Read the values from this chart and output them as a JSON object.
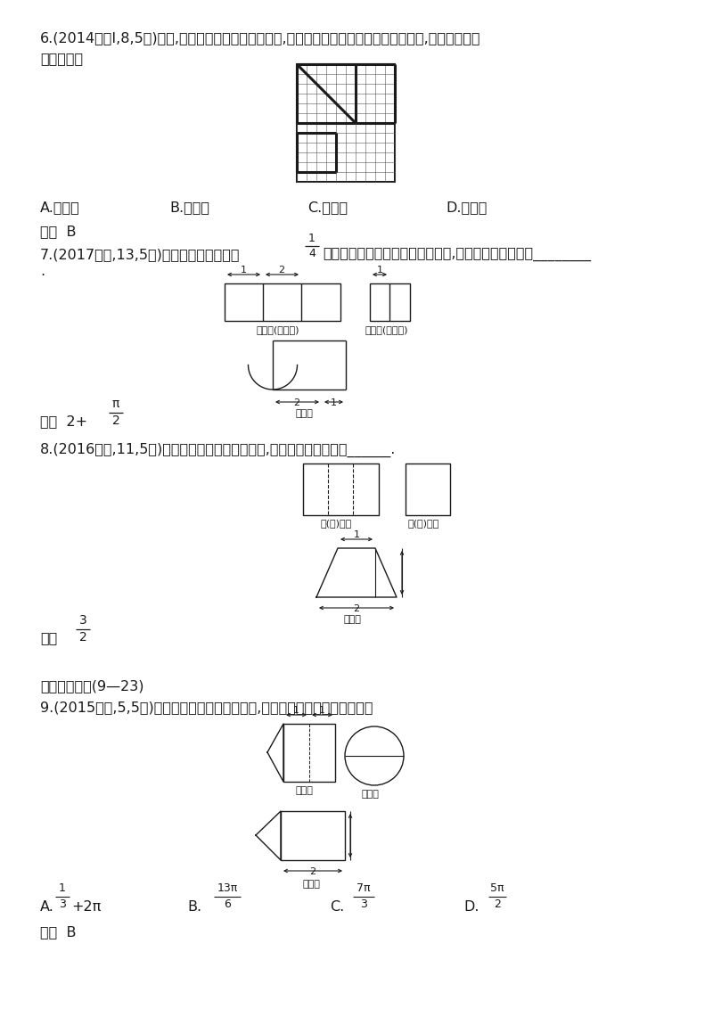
{
  "bg_color": "#ffffff",
  "q6_line1": "6.(2014课标Ⅰ,8,5分)如图,网格纸的各小格都是正方形,粗实线画出的是一个几何体的三视图,则这个几何体",
  "q6_line2": "是（　　）",
  "q6_optA": "A.三棱锥",
  "q6_optB": "B.三棱柱",
  "q6_optC": "C.四棱锥",
  "q6_optD": "D.四棱柱",
  "q6_ans": "答案  B",
  "q7_line1": "7.(2017山东,13,5分)由一个长方体和两个",
  "q7_frac_num": "1",
  "q7_frac_den": "4",
  "q7_line2": "圆柱体构成的几何体的三视图如图,则该几何体的体积为________",
  "q7_ans_pre": "答案  2+",
  "q7_ans_frac_n": "π",
  "q7_ans_frac_d": "2",
  "q8_line1": "8.(2016北京,11,5分)某四棱柱的三视图如图所示,则该四棱柱的体积为______.",
  "q8_ans_pre": "答案",
  "q8_ans_frac_n": "3",
  "q8_ans_frac_d": "2",
  "q8_fv_label": "正(主)视图",
  "q8_sv_label": "侧(左)视图",
  "q8_tv_label": "俧视图",
  "q7_fv_label": "正视图(主视图)",
  "q7_sv_label": "侧视图(左视图)",
  "q7_tv_label": "俧视图",
  "q9_section": "教师用书专用(9—23)",
  "q9_line1": "9.(2015重庆,5,5分)某几何体的三视图如图所示,则该几何体的体积为（　　）",
  "q9_fv_label": "主视图",
  "q9_sv_label": "左视图",
  "q9_tv_label": "俧视图",
  "q9_optA": "A.",
  "q9_optA_n": "1",
  "q9_optA_d": "3",
  "q9_optA_s": "+2π",
  "q9_optB": "B.",
  "q9_optB_n": "13π",
  "q9_optB_d": "6",
  "q9_optC": "C.",
  "q9_optC_n": "7π",
  "q9_optC_d": "3",
  "q9_optD": "D.",
  "q9_optD_n": "5π",
  "q9_optD_d": "2",
  "q9_ans": "答案  B"
}
